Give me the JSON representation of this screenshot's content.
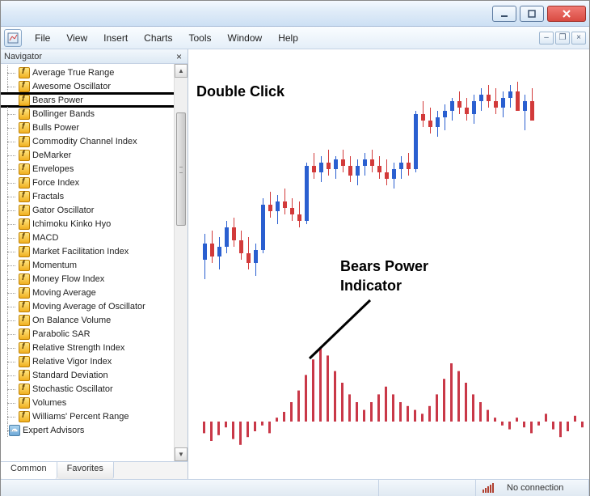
{
  "menu": {
    "file": "File",
    "view": "View",
    "insert": "Insert",
    "charts": "Charts",
    "tools": "Tools",
    "window": "Window",
    "help": "Help"
  },
  "navigator": {
    "title": "Navigator",
    "tabs": {
      "common": "Common",
      "favorites": "Favorites"
    },
    "items": [
      "Average True Range",
      "Awesome Oscillator",
      "Bears Power",
      "Bollinger Bands",
      "Bulls Power",
      "Commodity Channel Index",
      "DeMarker",
      "Envelopes",
      "Force Index",
      "Fractals",
      "Gator Oscillator",
      "Ichimoku Kinko Hyo",
      "MACD",
      "Market Facilitation Index",
      "Momentum",
      "Money Flow Index",
      "Moving Average",
      "Moving Average of Oscillator",
      "On Balance Volume",
      "Parabolic SAR",
      "Relative Strength Index",
      "Relative Vigor Index",
      "Standard Deviation",
      "Stochastic Oscillator",
      "Volumes",
      "Williams' Percent Range"
    ],
    "expert_advisors": "Expert Advisors",
    "highlighted_index": 2
  },
  "annotations": {
    "double_click": "Double Click",
    "label_line1": "Bears Power",
    "label_line2": "Indicator"
  },
  "status": {
    "connection": "No connection"
  },
  "chart": {
    "colors": {
      "bull": "#2a5fd0",
      "bear": "#d23a3a",
      "indicator": "#c93848",
      "bg": "#ffffff"
    },
    "candle_x_start": 18,
    "candle_x_step": 9,
    "candle_width": 5,
    "candle_baseline": 300,
    "candle_scale": 2.0,
    "candles": [
      {
        "o": 20,
        "h": 36,
        "l": 8,
        "c": 30,
        "t": "bull"
      },
      {
        "o": 30,
        "h": 38,
        "l": 18,
        "c": 22,
        "t": "bear"
      },
      {
        "o": 22,
        "h": 34,
        "l": 14,
        "c": 28,
        "t": "bull"
      },
      {
        "o": 28,
        "h": 44,
        "l": 24,
        "c": 40,
        "t": "bull"
      },
      {
        "o": 40,
        "h": 46,
        "l": 28,
        "c": 32,
        "t": "bear"
      },
      {
        "o": 32,
        "h": 38,
        "l": 20,
        "c": 24,
        "t": "bear"
      },
      {
        "o": 24,
        "h": 34,
        "l": 14,
        "c": 18,
        "t": "bear"
      },
      {
        "o": 18,
        "h": 30,
        "l": 10,
        "c": 26,
        "t": "bull"
      },
      {
        "o": 26,
        "h": 58,
        "l": 24,
        "c": 54,
        "t": "bull"
      },
      {
        "o": 54,
        "h": 62,
        "l": 46,
        "c": 50,
        "t": "bear"
      },
      {
        "o": 50,
        "h": 60,
        "l": 42,
        "c": 56,
        "t": "bull"
      },
      {
        "o": 56,
        "h": 64,
        "l": 48,
        "c": 52,
        "t": "bear"
      },
      {
        "o": 52,
        "h": 58,
        "l": 44,
        "c": 48,
        "t": "bear"
      },
      {
        "o": 48,
        "h": 56,
        "l": 40,
        "c": 44,
        "t": "bear"
      },
      {
        "o": 44,
        "h": 80,
        "l": 42,
        "c": 78,
        "t": "bull"
      },
      {
        "o": 78,
        "h": 86,
        "l": 70,
        "c": 74,
        "t": "bear"
      },
      {
        "o": 74,
        "h": 84,
        "l": 68,
        "c": 80,
        "t": "bull"
      },
      {
        "o": 80,
        "h": 88,
        "l": 72,
        "c": 76,
        "t": "bear"
      },
      {
        "o": 76,
        "h": 84,
        "l": 70,
        "c": 82,
        "t": "bull"
      },
      {
        "o": 82,
        "h": 88,
        "l": 74,
        "c": 78,
        "t": "bear"
      },
      {
        "o": 78,
        "h": 84,
        "l": 68,
        "c": 72,
        "t": "bear"
      },
      {
        "o": 72,
        "h": 82,
        "l": 66,
        "c": 78,
        "t": "bull"
      },
      {
        "o": 78,
        "h": 86,
        "l": 72,
        "c": 82,
        "t": "bull"
      },
      {
        "o": 82,
        "h": 88,
        "l": 74,
        "c": 78,
        "t": "bear"
      },
      {
        "o": 78,
        "h": 84,
        "l": 70,
        "c": 74,
        "t": "bear"
      },
      {
        "o": 74,
        "h": 82,
        "l": 66,
        "c": 70,
        "t": "bear"
      },
      {
        "o": 70,
        "h": 80,
        "l": 64,
        "c": 76,
        "t": "bull"
      },
      {
        "o": 76,
        "h": 84,
        "l": 70,
        "c": 80,
        "t": "bull"
      },
      {
        "o": 80,
        "h": 86,
        "l": 72,
        "c": 76,
        "t": "bear"
      },
      {
        "o": 76,
        "h": 112,
        "l": 74,
        "c": 110,
        "t": "bull"
      },
      {
        "o": 110,
        "h": 118,
        "l": 102,
        "c": 106,
        "t": "bear"
      },
      {
        "o": 106,
        "h": 114,
        "l": 98,
        "c": 102,
        "t": "bear"
      },
      {
        "o": 102,
        "h": 112,
        "l": 96,
        "c": 108,
        "t": "bull"
      },
      {
        "o": 108,
        "h": 116,
        "l": 100,
        "c": 112,
        "t": "bull"
      },
      {
        "o": 112,
        "h": 120,
        "l": 106,
        "c": 118,
        "t": "bull"
      },
      {
        "o": 118,
        "h": 124,
        "l": 110,
        "c": 114,
        "t": "bear"
      },
      {
        "o": 114,
        "h": 120,
        "l": 106,
        "c": 110,
        "t": "bear"
      },
      {
        "o": 110,
        "h": 122,
        "l": 104,
        "c": 118,
        "t": "bull"
      },
      {
        "o": 118,
        "h": 126,
        "l": 112,
        "c": 122,
        "t": "bull"
      },
      {
        "o": 122,
        "h": 128,
        "l": 114,
        "c": 118,
        "t": "bear"
      },
      {
        "o": 118,
        "h": 126,
        "l": 110,
        "c": 114,
        "t": "bear"
      },
      {
        "o": 114,
        "h": 124,
        "l": 108,
        "c": 120,
        "t": "bull"
      },
      {
        "o": 120,
        "h": 128,
        "l": 114,
        "c": 124,
        "t": "bull"
      },
      {
        "o": 124,
        "h": 130,
        "l": 116,
        "c": 112,
        "t": "bear"
      },
      {
        "o": 112,
        "h": 122,
        "l": 100,
        "c": 118,
        "t": "bull"
      },
      {
        "o": 118,
        "h": 126,
        "l": 110,
        "c": 106,
        "t": "bear"
      }
    ],
    "indicator_baseline": 460,
    "indicator_scale": 2.4,
    "indicator_bar_width": 3,
    "indicator": [
      -6,
      -10,
      -7,
      -3,
      -9,
      -12,
      -8,
      -5,
      -2,
      -6,
      2,
      5,
      10,
      16,
      24,
      32,
      38,
      34,
      26,
      20,
      14,
      10,
      6,
      10,
      14,
      18,
      14,
      10,
      8,
      6,
      4,
      8,
      14,
      22,
      30,
      26,
      20,
      14,
      10,
      6,
      2,
      -2,
      -4,
      2,
      -3,
      -6,
      -2,
      4,
      -4,
      -8,
      -5,
      3,
      -3
    ]
  }
}
